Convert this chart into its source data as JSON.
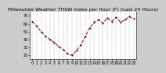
{
  "title": "Milwaukee Weather THSW Index per Hour (F) (Last 24 Hours)",
  "hours": [
    0,
    1,
    2,
    3,
    4,
    5,
    6,
    7,
    8,
    9,
    10,
    11,
    12,
    13,
    14,
    15,
    16,
    17,
    18,
    19,
    20,
    21,
    22,
    23
  ],
  "values": [
    63,
    57,
    50,
    44,
    40,
    36,
    31,
    27,
    22,
    20,
    26,
    33,
    44,
    55,
    62,
    65,
    61,
    67,
    63,
    68,
    62,
    65,
    69,
    66
  ],
  "line_color": "#cc0000",
  "marker_color": "#000000",
  "bg_color": "#cccccc",
  "plot_bg": "#ffffff",
  "grid_color": "#888888",
  "ylim": [
    15,
    75
  ],
  "yticks": [
    20,
    30,
    40,
    50,
    60,
    70
  ],
  "title_fontsize": 4.5,
  "tick_fontsize": 3.5
}
